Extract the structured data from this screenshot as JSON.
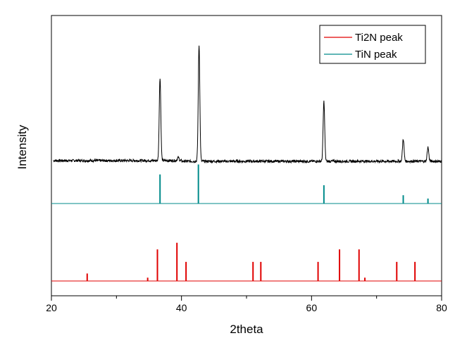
{
  "chart_data": {
    "type": "line",
    "title": "",
    "xlabel": "2theta",
    "ylabel": "Intensity",
    "xlim": [
      20,
      80
    ],
    "x_ticks_major": [
      20,
      40,
      60,
      80
    ],
    "x_ticks_minor": [
      30,
      50,
      70
    ],
    "y_ticks_shown": false,
    "grid": false,
    "legend": {
      "placement": "top-right",
      "entries": [
        {
          "label": "Ti2N peak",
          "color": "#e00000"
        },
        {
          "label": "TiN peak",
          "color": "#008b8b"
        }
      ]
    },
    "series": [
      {
        "kind": "measured-pattern",
        "color": "#000000",
        "baseline": 0,
        "peaks": [
          {
            "x": 36.7,
            "y": 100
          },
          {
            "x": 39.5,
            "y": 4
          },
          {
            "x": 42.7,
            "y": 140
          },
          {
            "x": 61.9,
            "y": 72
          },
          {
            "x": 74.1,
            "y": 27
          },
          {
            "x": 77.9,
            "y": 17
          }
        ]
      },
      {
        "name": "TiN peak",
        "kind": "reference-sticks",
        "color": "#008b8b",
        "sticks": [
          {
            "x": 36.7,
            "y": 35
          },
          {
            "x": 42.6,
            "y": 47
          },
          {
            "x": 61.9,
            "y": 22
          },
          {
            "x": 74.1,
            "y": 10
          },
          {
            "x": 77.9,
            "y": 6
          }
        ]
      },
      {
        "name": "Ti2N peak",
        "kind": "reference-sticks",
        "color": "#e00000",
        "sticks": [
          {
            "x": 25.5,
            "y": 9
          },
          {
            "x": 34.8,
            "y": 4
          },
          {
            "x": 36.3,
            "y": 38
          },
          {
            "x": 39.3,
            "y": 46
          },
          {
            "x": 40.7,
            "y": 23
          },
          {
            "x": 51.0,
            "y": 23
          },
          {
            "x": 52.2,
            "y": 23
          },
          {
            "x": 61.0,
            "y": 23
          },
          {
            "x": 64.3,
            "y": 38
          },
          {
            "x": 67.3,
            "y": 38
          },
          {
            "x": 68.2,
            "y": 4
          },
          {
            "x": 73.1,
            "y": 23
          },
          {
            "x": 75.9,
            "y": 23
          }
        ]
      }
    ]
  }
}
